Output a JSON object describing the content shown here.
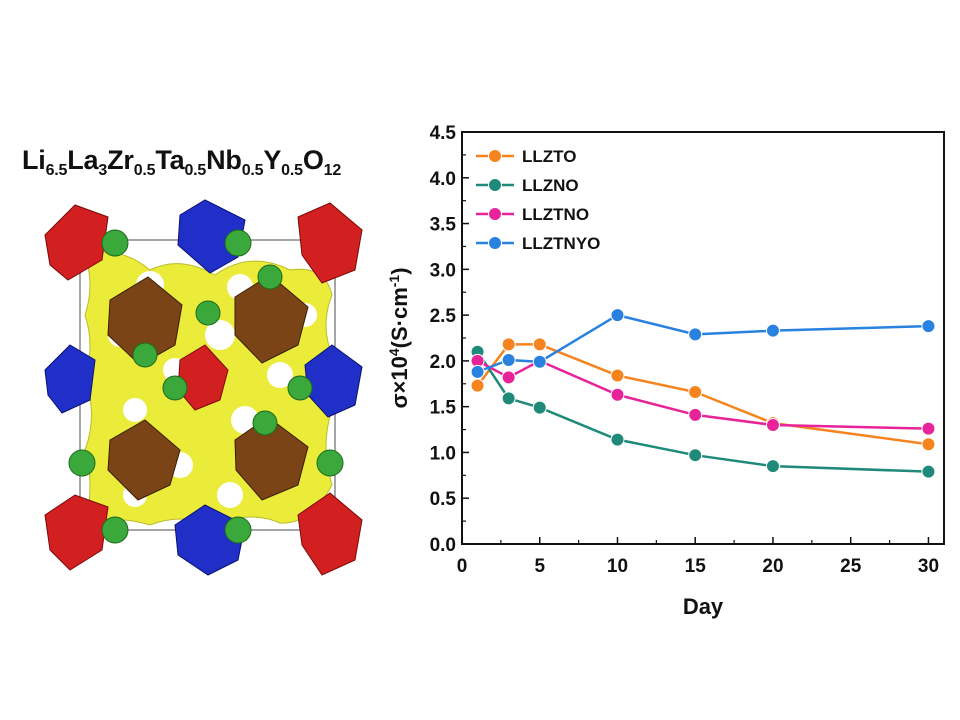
{
  "figure": {
    "formula_parts": [
      {
        "t": "Li",
        "sub": false
      },
      {
        "t": "6.5",
        "sub": true
      },
      {
        "t": "La",
        "sub": false
      },
      {
        "t": "3",
        "sub": true
      },
      {
        "t": "Zr",
        "sub": false
      },
      {
        "t": "0.5",
        "sub": true
      },
      {
        "t": "Ta",
        "sub": false
      },
      {
        "t": "0.5",
        "sub": true
      },
      {
        "t": "Nb",
        "sub": false
      },
      {
        "t": "0.5",
        "sub": true
      },
      {
        "t": "Y",
        "sub": false
      },
      {
        "t": "0.5",
        "sub": true
      },
      {
        "t": "O",
        "sub": false
      },
      {
        "t": "12",
        "sub": true
      }
    ]
  },
  "chart_data": {
    "type": "line",
    "title": "",
    "xlabel": "Day",
    "ylabel_parts": [
      "σ×10",
      "4",
      "(S·cm",
      "-1",
      ")"
    ],
    "xlim": [
      0,
      31
    ],
    "ylim": [
      0.0,
      4.5
    ],
    "x_ticks": [
      "0",
      "5",
      "10",
      "15",
      "20",
      "25",
      "30"
    ],
    "y_ticks": [
      "0.0",
      "0.5",
      "1.0",
      "1.5",
      "2.0",
      "2.5",
      "3.0",
      "3.5",
      "4.0",
      "4.5"
    ],
    "grid": false,
    "legend_position": "top-left",
    "x": [
      1,
      3,
      5,
      10,
      15,
      20,
      30
    ],
    "series": [
      {
        "name": "LLZTO",
        "color": "#f5841f",
        "values": [
          1.73,
          2.18,
          2.18,
          1.84,
          1.66,
          1.32,
          1.09
        ]
      },
      {
        "name": "LLZNO",
        "color": "#1f8a7a",
        "values": [
          2.1,
          1.59,
          1.49,
          1.14,
          0.97,
          0.85,
          0.79
        ]
      },
      {
        "name": "LLZTNO",
        "color": "#e8239a",
        "values": [
          2.0,
          1.82,
          2.0,
          1.63,
          1.41,
          1.3,
          1.26
        ]
      },
      {
        "name": "LLZTNYO",
        "color": "#2a82e0",
        "values": [
          1.88,
          2.01,
          1.99,
          2.5,
          2.29,
          2.33,
          2.38
        ]
      }
    ]
  }
}
